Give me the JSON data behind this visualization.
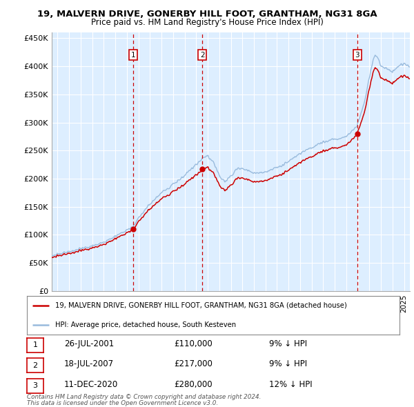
{
  "title_line1": "19, MALVERN DRIVE, GONERBY HILL FOOT, GRANTHAM, NG31 8GA",
  "title_line2": "Price paid vs. HM Land Registry's House Price Index (HPI)",
  "ylabel_ticks": [
    "£0",
    "£50K",
    "£100K",
    "£150K",
    "£200K",
    "£250K",
    "£300K",
    "£350K",
    "£400K",
    "£450K"
  ],
  "ytick_values": [
    0,
    50000,
    100000,
    150000,
    200000,
    250000,
    300000,
    350000,
    400000,
    450000
  ],
  "ylim": [
    0,
    460000
  ],
  "xlim_start": 1994.5,
  "xlim_end": 2025.5,
  "purchases": [
    {
      "label": "1",
      "date_year": 2001.57,
      "price": 110000,
      "text": "26-JUL-2001",
      "amount": "£110,000",
      "pct": "9% ↓ HPI"
    },
    {
      "label": "2",
      "date_year": 2007.54,
      "price": 217000,
      "text": "18-JUL-2007",
      "amount": "£217,000",
      "pct": "9% ↓ HPI"
    },
    {
      "label": "3",
      "date_year": 2020.95,
      "price": 280000,
      "text": "11-DEC-2020",
      "amount": "£280,000",
      "pct": "12% ↓ HPI"
    }
  ],
  "legend_line1": "19, MALVERN DRIVE, GONERBY HILL FOOT, GRANTHAM, NG31 8GA (detached house)",
  "legend_line2": "HPI: Average price, detached house, South Kesteven",
  "footer1": "Contains HM Land Registry data © Crown copyright and database right 2024.",
  "footer2": "This data is licensed under the Open Government Licence v3.0.",
  "red_color": "#cc0000",
  "blue_color": "#99bbdd",
  "background_plot": "#ddeeff",
  "background_fig": "#ffffff",
  "dot_color": "#cc0000"
}
